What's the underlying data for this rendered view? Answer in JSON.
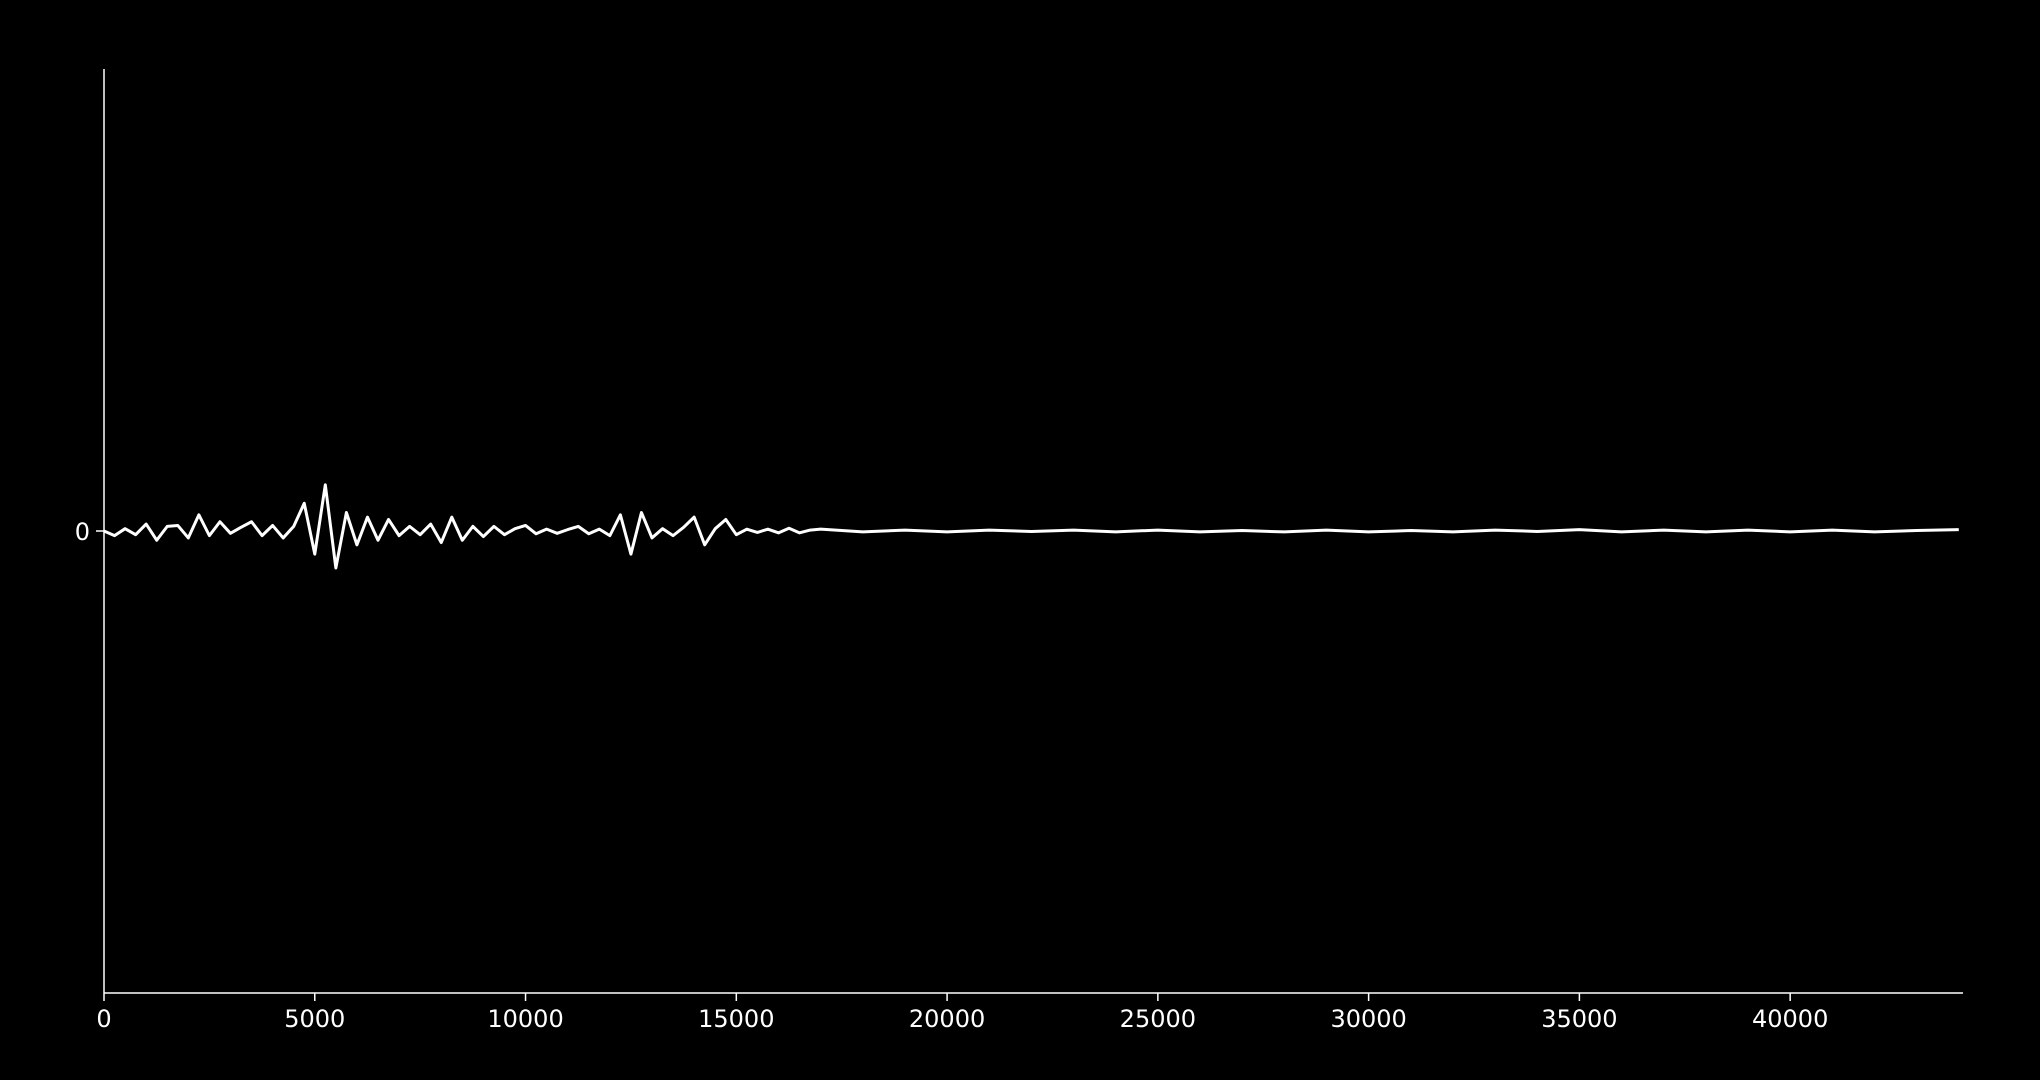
{
  "chart_data": {
    "type": "line",
    "x": [
      0,
      250,
      500,
      750,
      1000,
      1250,
      1500,
      1750,
      2000,
      2250,
      2500,
      2750,
      3000,
      3250,
      3500,
      3750,
      4000,
      4250,
      4500,
      4750,
      5000,
      5250,
      5500,
      5750,
      6000,
      6250,
      6500,
      6750,
      7000,
      7250,
      7500,
      7750,
      8000,
      8250,
      8500,
      8750,
      9000,
      9250,
      9500,
      9750,
      10000,
      10250,
      10500,
      10750,
      11000,
      11250,
      11500,
      11750,
      12000,
      12250,
      12500,
      12750,
      13000,
      13250,
      13500,
      13750,
      14000,
      14250,
      14500,
      14750,
      15000,
      15250,
      15500,
      15750,
      16000,
      16250,
      16500,
      16750,
      17000,
      18000,
      19000,
      20000,
      21000,
      22000,
      23000,
      24000,
      25000,
      26000,
      27000,
      28000,
      29000,
      30000,
      31000,
      32000,
      33000,
      34000,
      35000,
      36000,
      37000,
      38000,
      39000,
      40000,
      41000,
      42000,
      43000,
      44000
    ],
    "series": [
      {
        "color": "#ffffff",
        "values": [
          0,
          -0.01,
          0.005,
          -0.008,
          0.015,
          -0.02,
          0.01,
          0.012,
          -0.015,
          0.035,
          -0.01,
          0.02,
          -0.005,
          0.008,
          0.02,
          -0.01,
          0.012,
          -0.015,
          0.01,
          0.06,
          -0.05,
          0.1,
          -0.08,
          0.04,
          -0.03,
          0.03,
          -0.02,
          0.025,
          -0.01,
          0.01,
          -0.008,
          0.015,
          -0.025,
          0.03,
          -0.02,
          0.01,
          -0.012,
          0.01,
          -0.008,
          0.005,
          0.012,
          -0.006,
          0.004,
          -0.005,
          0.003,
          0.01,
          -0.006,
          0.004,
          -0.01,
          0.035,
          -0.05,
          0.04,
          -0.015,
          0.005,
          -0.01,
          0.008,
          0.03,
          -0.03,
          0.005,
          0.025,
          -0.008,
          0.004,
          -0.003,
          0.004,
          -0.004,
          0.006,
          -0.004,
          0.002,
          0.004,
          -0.002,
          0.002,
          -0.002,
          0.002,
          -0.001,
          0.002,
          -0.002,
          0.002,
          -0.002,
          0.001,
          -0.002,
          0.002,
          -0.002,
          0.001,
          -0.002,
          0.002,
          -0.001,
          0.003,
          -0.002,
          0.002,
          -0.002,
          0.002,
          -0.002,
          0.002,
          -0.002,
          0.001,
          0.003
        ]
      }
    ],
    "xlim": [
      0,
      44100
    ],
    "ylim": [
      -1,
      1
    ],
    "xticks": [
      0,
      5000,
      10000,
      15000,
      20000,
      25000,
      30000,
      35000,
      40000
    ],
    "yticks": [
      0
    ]
  }
}
